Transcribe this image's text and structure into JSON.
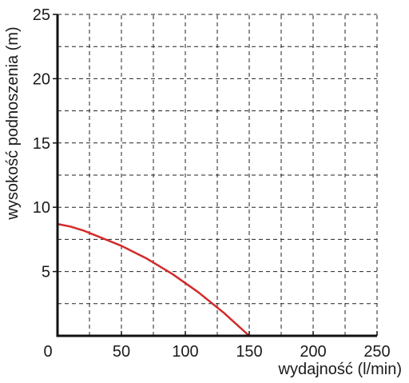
{
  "chart_data": {
    "type": "line",
    "title": "",
    "xlabel": "wydajność (l/min)",
    "ylabel": "wysokość podnoszenia (m)",
    "xlim": [
      0,
      250
    ],
    "ylim": [
      0,
      25
    ],
    "x_ticks": [
      0,
      50,
      100,
      150,
      200,
      250
    ],
    "y_ticks": [
      5,
      10,
      15,
      20,
      25
    ],
    "x_tick_labels": [
      "0",
      "50",
      "100",
      "150",
      "200",
      "250"
    ],
    "y_tick_labels": [
      "5",
      "10",
      "15",
      "20",
      "25"
    ],
    "x_grid_step": 25,
    "y_grid_step": 2.5,
    "grid": true,
    "legend": "none",
    "series": [
      {
        "color": "#d42a2a",
        "x": [
          0,
          10,
          20,
          30,
          40,
          50,
          60,
          70,
          80,
          90,
          100,
          110,
          120,
          130,
          140,
          150
        ],
        "y": [
          8.7,
          8.5,
          8.2,
          7.8,
          7.4,
          7.0,
          6.5,
          6.0,
          5.4,
          4.8,
          4.1,
          3.4,
          2.6,
          1.8,
          0.9,
          0.0
        ]
      }
    ]
  }
}
